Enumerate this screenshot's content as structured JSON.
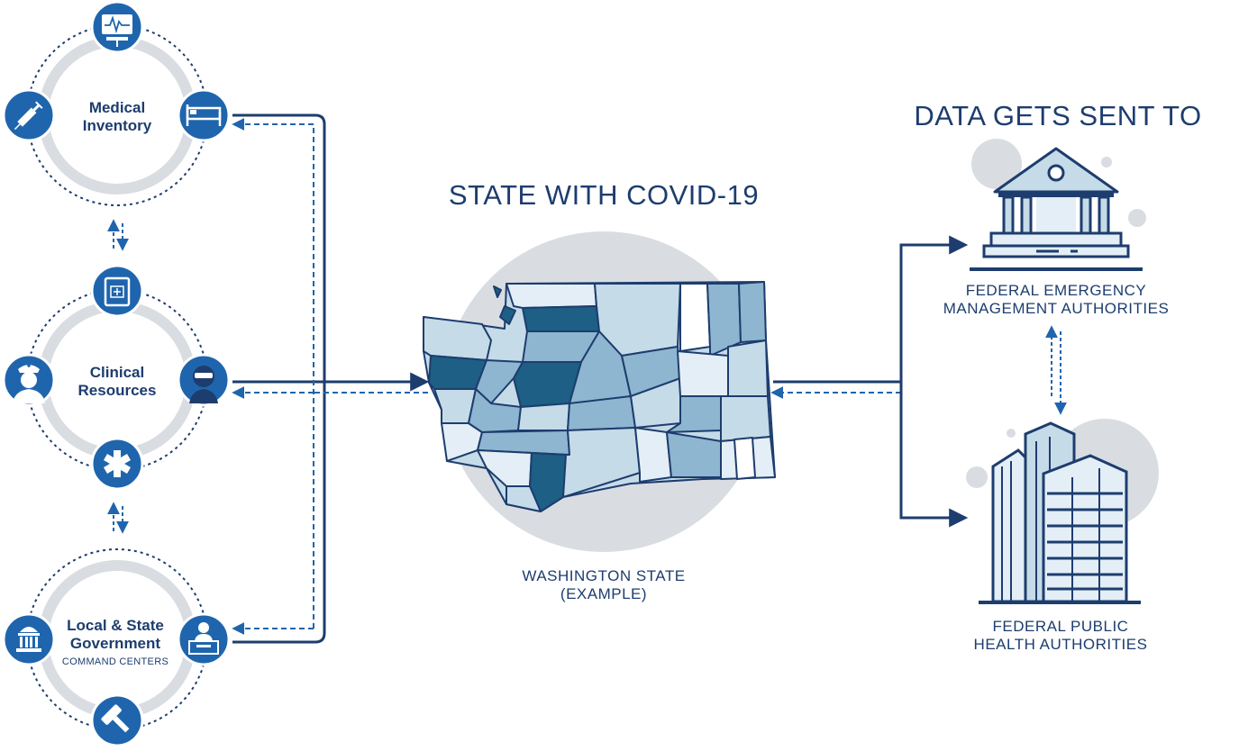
{
  "hubs": [
    {
      "title_line1": "Medical",
      "title_line2": "Inventory",
      "subtitle": "",
      "icons": [
        "monitor-icon",
        "syringe-icon",
        "bed-icon"
      ]
    },
    {
      "title_line1": "Clinical",
      "title_line2": "Resources",
      "subtitle": "",
      "icons": [
        "tablet-icon",
        "nurse-icon",
        "doctor-mask-icon",
        "star-of-life-icon"
      ]
    },
    {
      "title_line1": "Local & State",
      "title_line2": "Government",
      "subtitle": "COMMAND CENTERS",
      "icons": [
        "capitol-icon",
        "desk-official-icon",
        "gavel-icon"
      ]
    }
  ],
  "center": {
    "heading": "STATE WITH COVID-19",
    "caption_line1": "WASHINGTON STATE",
    "caption_line2": "(EXAMPLE)"
  },
  "right": {
    "heading": "DATA GETS SENT TO",
    "fema_line1": "FEDERAL EMERGENCY",
    "fema_line2": "MANAGEMENT AUTHORITIES",
    "health_line1": "FEDERAL PUBLIC",
    "health_line2": "HEALTH AUTHORITIES",
    "fema_icon": "government-building-icon",
    "health_icon": "office-buildings-icon"
  },
  "colors": {
    "navy": "#1d3d6e",
    "blue": "#1f65ad",
    "ring_gray": "#d9dde2",
    "county_dark": "#1d5f85",
    "county_mid": "#8fb6d0",
    "county_light": "#c6dbe8",
    "county_pale": "#e3eef6"
  }
}
